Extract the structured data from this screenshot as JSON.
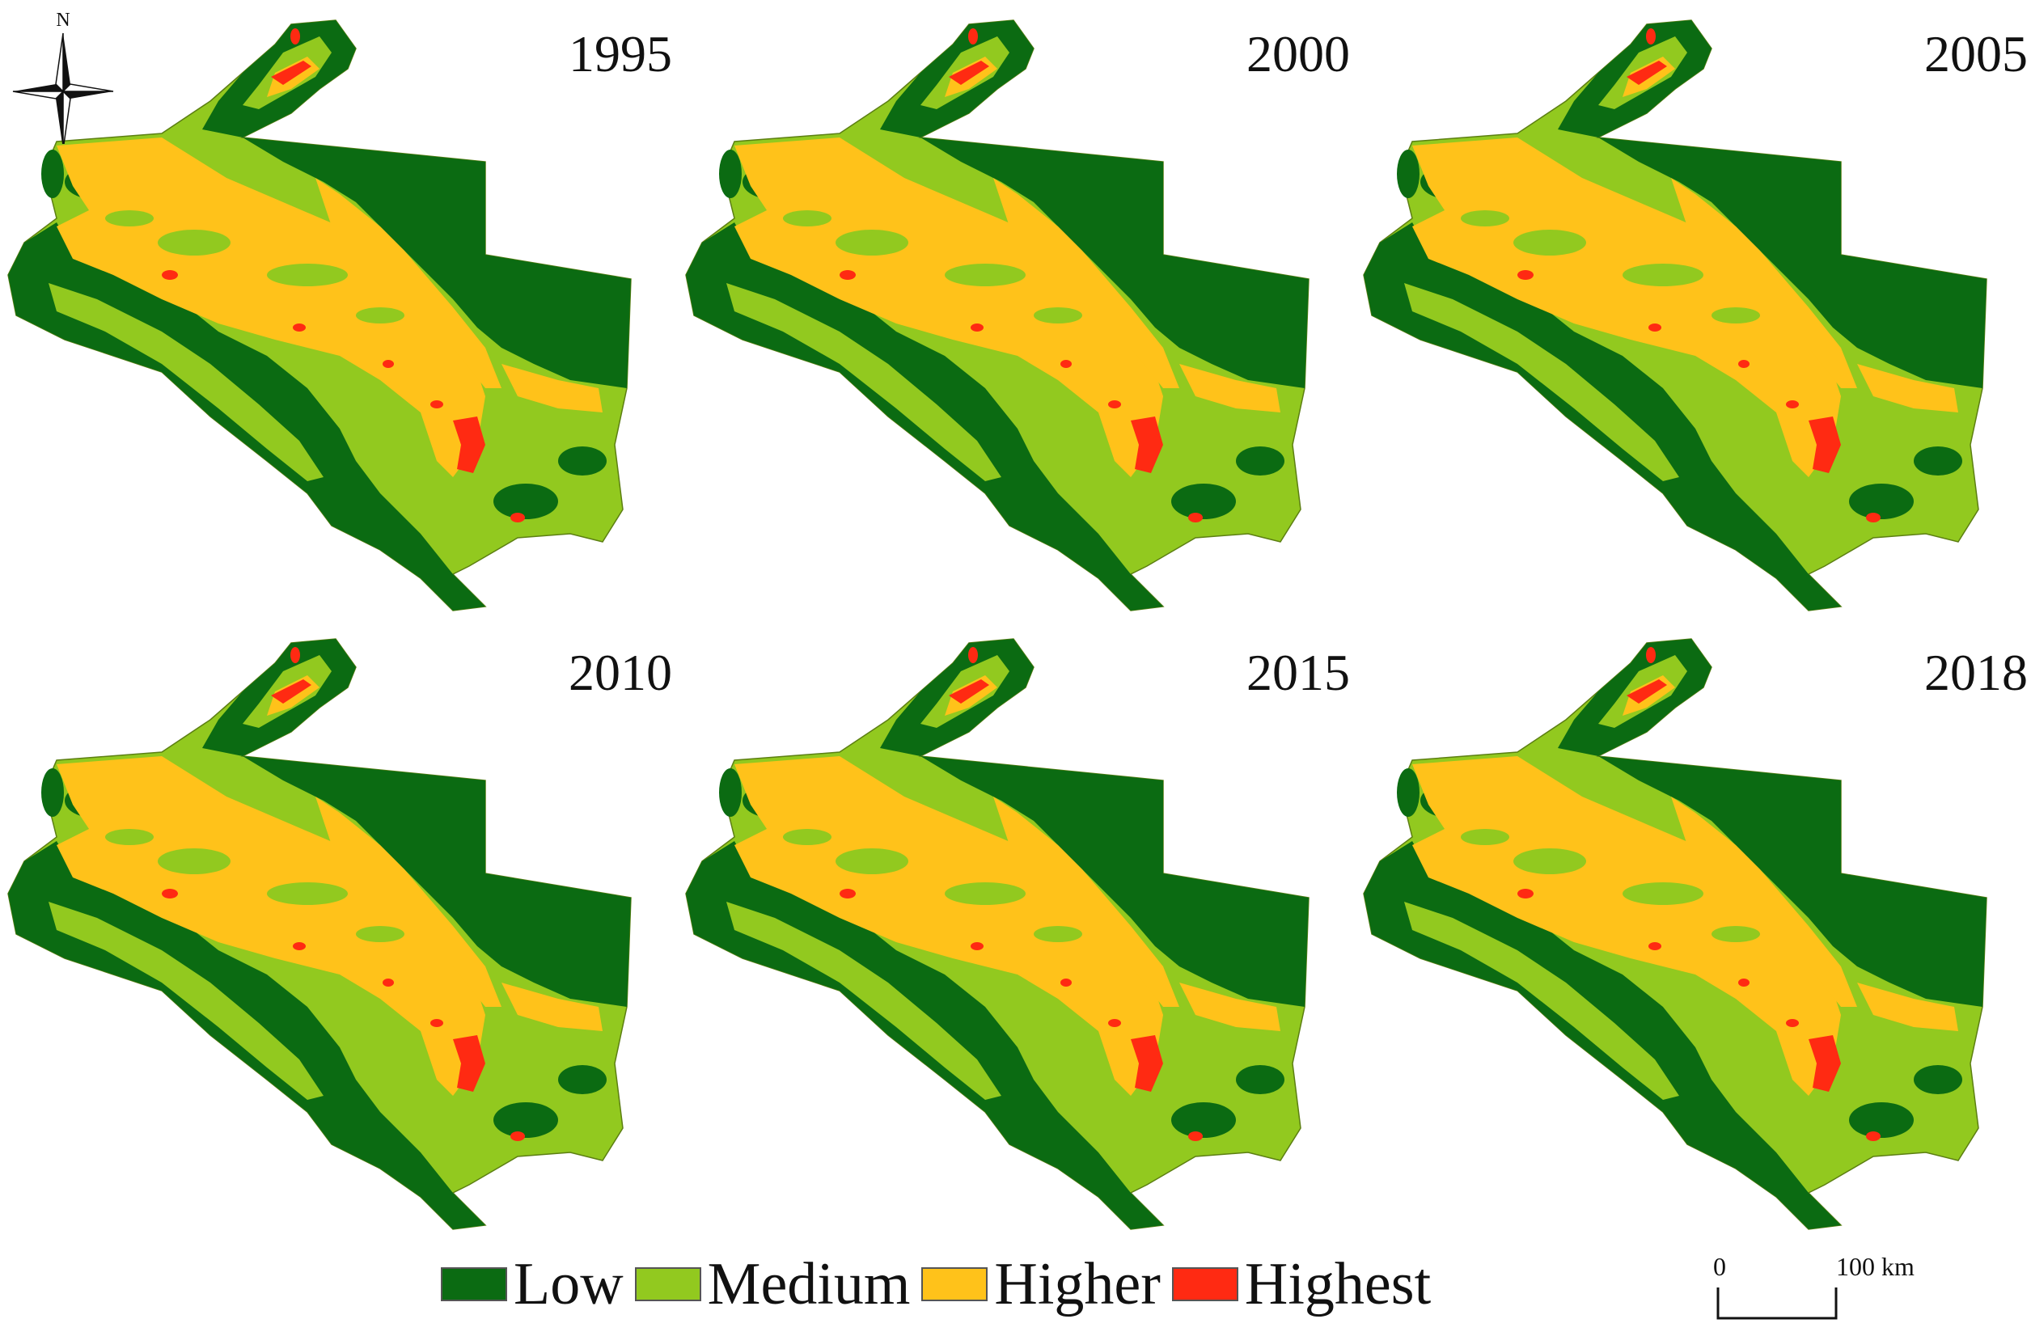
{
  "figure": {
    "panels": [
      {
        "year": "1995"
      },
      {
        "year": "2000"
      },
      {
        "year": "2005"
      },
      {
        "year": "2010"
      },
      {
        "year": "2015"
      },
      {
        "year": "2018"
      }
    ],
    "north_label": "N",
    "legend": [
      {
        "label": "Low",
        "color": "#0b6b12"
      },
      {
        "label": "Medium",
        "color": "#92c91f"
      },
      {
        "label": "Higher",
        "color": "#ffc21a"
      },
      {
        "label": "Highest",
        "color": "#ff2a12"
      }
    ],
    "scale_bar": {
      "start": "0",
      "end": "100 km"
    }
  }
}
